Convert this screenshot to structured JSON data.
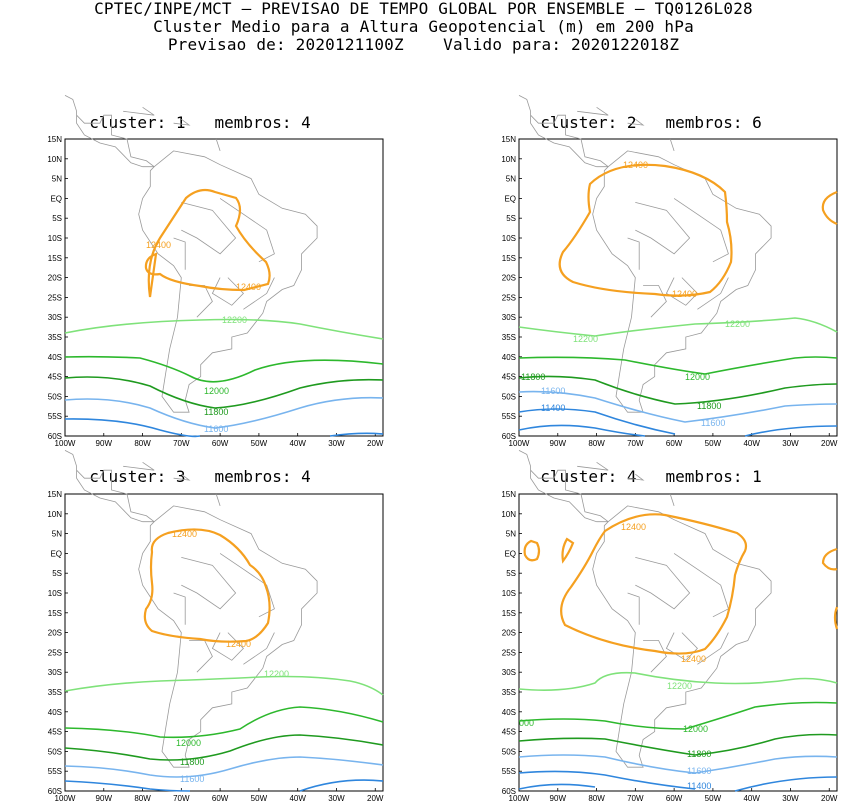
{
  "header": {
    "line1": "CPTEC/INPE/MCT — PREVISAO DE TEMPO GLOBAL POR ENSEMBLE — TQ0126L028",
    "line2": "Cluster Medio para a Altura Geopotencial (m) em 200 hPa",
    "line3": "Previsao de: 2020121100Z    Valido para: 2020122018Z"
  },
  "axes": {
    "lat_labels": [
      "15N",
      "10N",
      "5N",
      "EQ",
      "5S",
      "10S",
      "15S",
      "20S",
      "25S",
      "30S",
      "35S",
      "40S",
      "45S",
      "50S",
      "55S",
      "60S"
    ],
    "lon_labels": [
      "100W",
      "90W",
      "80W",
      "70W",
      "60W",
      "50W",
      "40W",
      "30W",
      "20W"
    ]
  },
  "colors": {
    "c12400": "#f5a020",
    "c12200": "#7fe27a",
    "c12000": "#2db82d",
    "c11800": "#1f9a1f",
    "c11600": "#78b4ee",
    "c11400": "#2f86dd",
    "map": "#9a9a9a"
  },
  "panels": [
    {
      "title": "cluster: 1   membros: 4",
      "labels": {
        "a": "12400",
        "b": "12400",
        "c": "12200",
        "d": "12000",
        "e": "11800",
        "f": "11600"
      }
    },
    {
      "title": "cluster: 2   membros: 6",
      "labels": {
        "a": "12400",
        "b": "12400",
        "c": "12200",
        "d": "12200",
        "e": "12000",
        "f": "11800",
        "g": "11800",
        "h": "11600",
        "i": "11600",
        "j": "11400"
      }
    },
    {
      "title": "cluster: 3   membros: 4",
      "labels": {
        "a": "12400",
        "b": "12400",
        "c": "12200",
        "d": "12000",
        "e": "11800",
        "f": "11600"
      }
    },
    {
      "title": "cluster: 4   membros: 1",
      "labels": {
        "a": "12400",
        "b": "12400",
        "c": "12200",
        "d": "000",
        "e": "12000",
        "f": "11800",
        "g": "11600",
        "h": "11400"
      }
    }
  ]
}
